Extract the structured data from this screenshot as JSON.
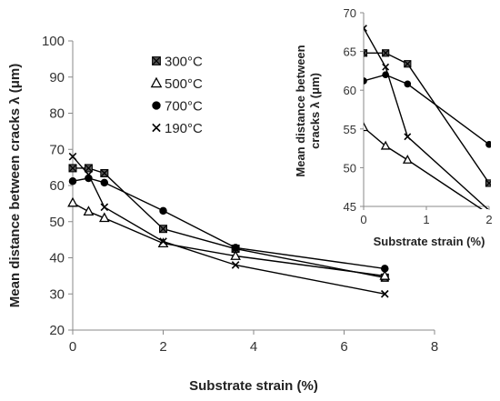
{
  "chart_data": [
    {
      "type": "line",
      "title": "",
      "xlabel": "Substrate strain (%)",
      "ylabel": "Mean distance between cracks  λ (μm)",
      "xlim": [
        0,
        8
      ],
      "ylim": [
        20,
        100
      ],
      "xticks": [
        "0",
        "2",
        "4",
        "6",
        "8"
      ],
      "yticks": [
        "20",
        "30",
        "40",
        "50",
        "60",
        "70",
        "80",
        "90",
        "100"
      ],
      "grid": false,
      "legend_position": "top-center",
      "series": [
        {
          "name": "300°C",
          "marker": "square-x",
          "x": [
            0,
            0.35,
            0.7,
            2.0,
            3.6,
            6.9
          ],
          "y": [
            64.8,
            64.8,
            63.4,
            48,
            42.5,
            34.5
          ]
        },
        {
          "name": "500°C",
          "marker": "triangle",
          "x": [
            0,
            0.35,
            0.7,
            2.0,
            3.6,
            6.9
          ],
          "y": [
            55.2,
            52.8,
            51,
            44,
            40.5,
            35
          ]
        },
        {
          "name": "700°C",
          "marker": "circle",
          "x": [
            0,
            0.35,
            0.7,
            2.0,
            3.6,
            6.9
          ],
          "y": [
            61.2,
            62,
            60.8,
            53,
            42.8,
            37
          ]
        },
        {
          "name": "190°C",
          "marker": "x",
          "x": [
            0,
            0.35,
            0.7,
            2.0,
            3.6,
            6.9
          ],
          "y": [
            68,
            63,
            54,
            44.5,
            38,
            30
          ]
        }
      ]
    },
    {
      "type": "line",
      "title": "",
      "xlabel": "Substrate strain (%)",
      "ylabel": "Mean distance between cracks  λ (μm)",
      "xlim": [
        0,
        2
      ],
      "ylim": [
        45,
        70
      ],
      "xticks": [
        "0",
        "1",
        "2"
      ],
      "yticks": [
        "45",
        "50",
        "55",
        "60",
        "65",
        "70"
      ]
    }
  ]
}
